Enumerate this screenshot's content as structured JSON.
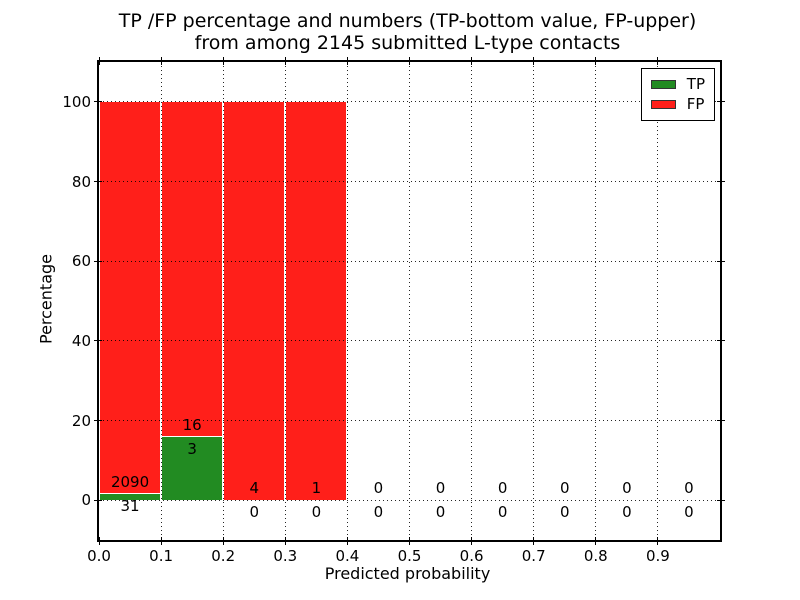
{
  "figure": {
    "title_line1": "TP /FP percentage and numbers (TP-bottom value, FP-upper)",
    "title_line2": "from among 2145 submitted L-type contacts",
    "background": "#ffffff"
  },
  "chart_data": {
    "type": "bar",
    "subtype": "stacked-percentage-histogram",
    "title": "TP /FP percentage and numbers (TP-bottom value, FP-upper)\nfrom among 2145 submitted L-type contacts",
    "xlabel": "Predicted probability",
    "ylabel": "Percentage",
    "total_submitted": 2145,
    "grid": "dotted",
    "grid_above_bars": true,
    "xlim": [
      0.0,
      1.0
    ],
    "ylim": [
      -10,
      110
    ],
    "bin_width": 0.1,
    "colors": {
      "tp": "#228b22",
      "fp": "#ff1f1a",
      "text": "#000000",
      "background": "#ffffff"
    },
    "legend": {
      "position": "upper-right",
      "entries": [
        {
          "label": "TP",
          "color": "#228b22"
        },
        {
          "label": "FP",
          "color": "#ff1f1a"
        }
      ]
    },
    "yticks": [
      {
        "value": 0,
        "label": "0"
      },
      {
        "value": 20,
        "label": "20"
      },
      {
        "value": 40,
        "label": "40"
      },
      {
        "value": 60,
        "label": "60"
      },
      {
        "value": 80,
        "label": "80"
      },
      {
        "value": 100,
        "label": "100"
      }
    ],
    "xticks": [
      {
        "value": 0.0,
        "label": "0.0"
      },
      {
        "value": 0.1,
        "label": "0.1"
      },
      {
        "value": 0.2,
        "label": "0.2"
      },
      {
        "value": 0.3,
        "label": "0.3"
      },
      {
        "value": 0.4,
        "label": "0.4"
      },
      {
        "value": 0.5,
        "label": "0.5"
      },
      {
        "value": 0.6,
        "label": "0.6"
      },
      {
        "value": 0.7,
        "label": "0.7"
      },
      {
        "value": 0.8,
        "label": "0.8"
      },
      {
        "value": 0.9,
        "label": "0.9"
      }
    ],
    "bins": [
      {
        "x0": 0.0,
        "x1": 0.1,
        "tp": 31,
        "fp": 2090,
        "tp_pct": 1.46,
        "fp_pct": 98.54,
        "tp_label": "31",
        "fp_label": "2090"
      },
      {
        "x0": 0.1,
        "x1": 0.2,
        "tp": 3,
        "fp": 16,
        "tp_pct": 15.79,
        "fp_pct": 84.21,
        "tp_label": "3",
        "fp_label": "16"
      },
      {
        "x0": 0.2,
        "x1": 0.3,
        "tp": 0,
        "fp": 4,
        "tp_pct": 0,
        "fp_pct": 100,
        "tp_label": "0",
        "fp_label": "4"
      },
      {
        "x0": 0.3,
        "x1": 0.4,
        "tp": 0,
        "fp": 1,
        "tp_pct": 0,
        "fp_pct": 100,
        "tp_label": "0",
        "fp_label": "1"
      },
      {
        "x0": 0.4,
        "x1": 0.5,
        "tp": 0,
        "fp": 0,
        "tp_pct": 0,
        "fp_pct": 0,
        "tp_label": "0",
        "fp_label": "0"
      },
      {
        "x0": 0.5,
        "x1": 0.6,
        "tp": 0,
        "fp": 0,
        "tp_pct": 0,
        "fp_pct": 0,
        "tp_label": "0",
        "fp_label": "0"
      },
      {
        "x0": 0.6,
        "x1": 0.7,
        "tp": 0,
        "fp": 0,
        "tp_pct": 0,
        "fp_pct": 0,
        "tp_label": "0",
        "fp_label": "0"
      },
      {
        "x0": 0.7,
        "x1": 0.8,
        "tp": 0,
        "fp": 0,
        "tp_pct": 0,
        "fp_pct": 0,
        "tp_label": "0",
        "fp_label": "0"
      },
      {
        "x0": 0.8,
        "x1": 0.9,
        "tp": 0,
        "fp": 0,
        "tp_pct": 0,
        "fp_pct": 0,
        "tp_label": "0",
        "fp_label": "0"
      },
      {
        "x0": 0.9,
        "x1": 1.0,
        "tp": 0,
        "fp": 0,
        "tp_pct": 0,
        "fp_pct": 0,
        "tp_label": "0",
        "fp_label": "0"
      }
    ]
  }
}
